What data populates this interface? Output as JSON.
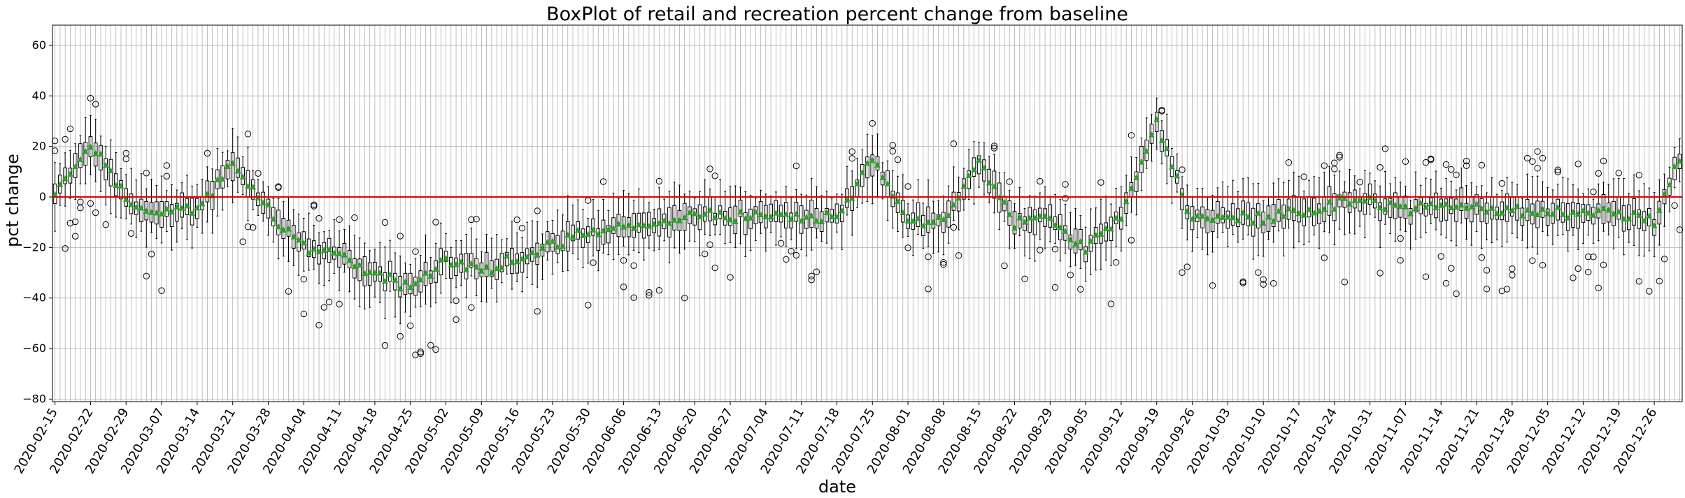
{
  "chart_data": {
    "type": "boxplot",
    "title": "BoxPlot of retail and recreation percent change from baseline",
    "xlabel": "date",
    "ylabel": "pct change",
    "ylim": [
      -81,
      68
    ],
    "yticks": [
      60,
      40,
      20,
      0,
      -20,
      -40,
      -60,
      -80
    ],
    "ytick_labels": [
      "60",
      "40",
      "20",
      "0",
      "−20",
      "−40",
      "−60",
      "−80"
    ],
    "grid": true,
    "reference_line": {
      "y": 0,
      "color": "#e00000"
    },
    "date_start": "2020-02-15",
    "date_end": "2020-12-31",
    "xtick_labels": [
      "2020-02-15",
      "2020-02-22",
      "2020-02-29",
      "2020-03-07",
      "2020-03-14",
      "2020-03-21",
      "2020-03-28",
      "2020-04-04",
      "2020-04-11",
      "2020-04-18",
      "2020-04-25",
      "2020-05-02",
      "2020-05-09",
      "2020-05-16",
      "2020-05-23",
      "2020-05-30",
      "2020-06-06",
      "2020-06-13",
      "2020-06-20",
      "2020-06-27",
      "2020-07-04",
      "2020-07-11",
      "2020-07-18",
      "2020-07-25",
      "2020-08-01",
      "2020-08-08",
      "2020-08-15",
      "2020-08-22",
      "2020-08-29",
      "2020-09-05",
      "2020-09-12",
      "2020-09-19",
      "2020-09-26",
      "2020-10-03",
      "2020-10-10",
      "2020-10-17",
      "2020-10-24",
      "2020-10-31",
      "2020-11-07",
      "2020-11-14",
      "2020-11-21",
      "2020-11-28",
      "2020-12-05",
      "2020-12-12",
      "2020-12-19",
      "2020-12-26"
    ],
    "median_points": [
      [
        "2020-02-15",
        0
      ],
      [
        "2020-02-22",
        22
      ],
      [
        "2020-02-29",
        -1
      ],
      [
        "2020-03-07",
        -8
      ],
      [
        "2020-03-14",
        -4
      ],
      [
        "2020-03-21",
        12
      ],
      [
        "2020-03-28",
        -5
      ],
      [
        "2020-04-04",
        -20
      ],
      [
        "2020-04-11",
        -22
      ],
      [
        "2020-04-18",
        -30
      ],
      [
        "2020-04-25",
        -37
      ],
      [
        "2020-05-02",
        -25
      ],
      [
        "2020-05-09",
        -28
      ],
      [
        "2020-05-16",
        -25
      ],
      [
        "2020-05-23",
        -18
      ],
      [
        "2020-05-30",
        -15
      ],
      [
        "2020-06-06",
        -12
      ],
      [
        "2020-06-13",
        -10
      ],
      [
        "2020-06-20",
        -7
      ],
      [
        "2020-06-27",
        -7
      ],
      [
        "2020-07-04",
        -8
      ],
      [
        "2020-07-11",
        -9
      ],
      [
        "2020-07-18",
        -9
      ],
      [
        "2020-07-25",
        15
      ],
      [
        "2020-08-01",
        -10
      ],
      [
        "2020-08-08",
        -8
      ],
      [
        "2020-08-15",
        12
      ],
      [
        "2020-08-22",
        -10
      ],
      [
        "2020-08-29",
        -9
      ],
      [
        "2020-09-05",
        -20
      ],
      [
        "2020-09-12",
        -8
      ],
      [
        "2020-09-19",
        30
      ],
      [
        "2020-09-26",
        -10
      ],
      [
        "2020-10-03",
        -7
      ],
      [
        "2020-10-10",
        -8
      ],
      [
        "2020-10-17",
        -6
      ],
      [
        "2020-10-24",
        -3
      ],
      [
        "2020-10-31",
        -2
      ],
      [
        "2020-11-07",
        -6
      ],
      [
        "2020-11-14",
        -3
      ],
      [
        "2020-11-21",
        -5
      ],
      [
        "2020-11-28",
        -6
      ],
      [
        "2020-12-05",
        -6
      ],
      [
        "2020-12-12",
        -7
      ],
      [
        "2020-12-19",
        -6
      ],
      [
        "2020-12-26",
        -10
      ],
      [
        "2020-12-31",
        15
      ]
    ],
    "box_color": "#000000",
    "mean_color": "#2ca02c",
    "outlier_style": "open circle"
  }
}
